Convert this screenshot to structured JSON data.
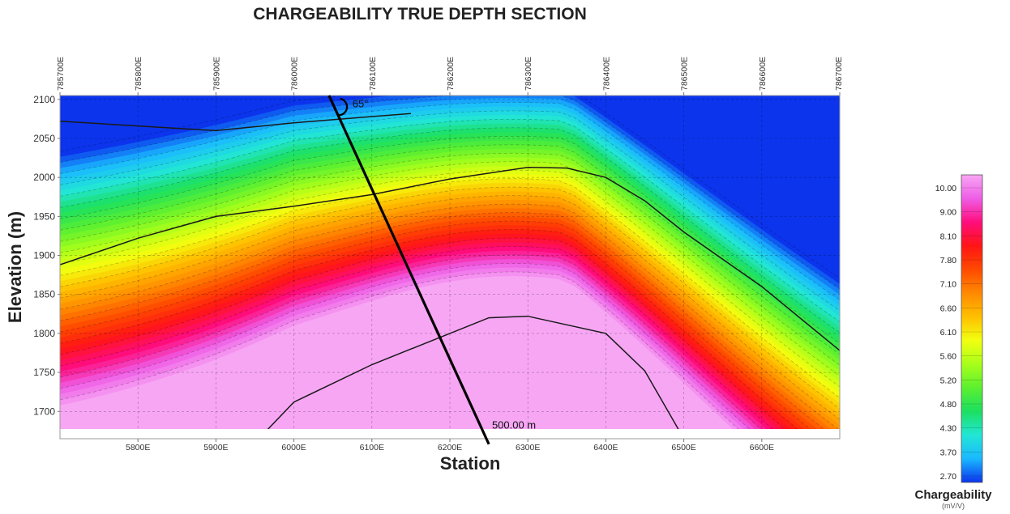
{
  "chart_data": {
    "type": "heatmap",
    "title": "CHARGEABILITY TRUE DEPTH SECTION",
    "xlabel": "Station",
    "ylabel": "Elevation (m)",
    "xlim": [
      5700,
      6700
    ],
    "ylim": [
      1665,
      2105
    ],
    "x_ticks": [
      "5800E",
      "5900E",
      "6000E",
      "6100E",
      "6200E",
      "6300E",
      "6400E",
      "6500E",
      "6600E"
    ],
    "x_tick_values": [
      5800,
      5900,
      6000,
      6100,
      6200,
      6300,
      6400,
      6500,
      6600
    ],
    "y_ticks": [
      1700,
      1750,
      1800,
      1850,
      1900,
      1950,
      2000,
      2050,
      2100
    ],
    "top_ticks": [
      "785700E",
      "785800E",
      "785900E",
      "786000E",
      "786100E",
      "786200E",
      "786300E",
      "786400E",
      "786500E",
      "786600E",
      "786700E"
    ],
    "top_tick_values": [
      5700,
      5800,
      5900,
      6000,
      6100,
      6200,
      6300,
      6400,
      6500,
      6600,
      6700
    ],
    "grid": true,
    "colorbar": {
      "title": "Chargeability",
      "unit": "(mV/V)",
      "labels": [
        "10.00",
        "9.00",
        "8.10",
        "7.80",
        "7.10",
        "6.60",
        "6.10",
        "5.60",
        "5.20",
        "4.80",
        "4.30",
        "3.70",
        "2.70"
      ],
      "colors": [
        "#ef5de6",
        "#ff0d7c",
        "#ff1515",
        "#ff4a00",
        "#ff8a00",
        "#ffc000",
        "#f2ff10",
        "#a8ff1a",
        "#5cf030",
        "#1ce060",
        "#22e6d6",
        "#1ab8ff",
        "#0b34ec"
      ],
      "top_color": "#f7a6f4",
      "placement": "right"
    },
    "contours": [
      {
        "level": 3,
        "points": [
          [
            5700,
            2072
          ],
          [
            5800,
            2066
          ],
          [
            5900,
            2060
          ],
          [
            6000,
            2070
          ],
          [
            6100,
            2078
          ],
          [
            6150,
            2082
          ]
        ]
      },
      {
        "level": 5,
        "points": [
          [
            5700,
            1888
          ],
          [
            5800,
            1922
          ],
          [
            5900,
            1950
          ],
          [
            6000,
            1963
          ],
          [
            6100,
            1978
          ],
          [
            6200,
            1998
          ],
          [
            6300,
            2013
          ],
          [
            6350,
            2012
          ],
          [
            6400,
            2000
          ],
          [
            6450,
            1970
          ],
          [
            6500,
            1930
          ],
          [
            6600,
            1860
          ],
          [
            6700,
            1778
          ]
        ]
      },
      {
        "level": 11,
        "points": [
          [
            5955,
            1665
          ],
          [
            6000,
            1712
          ],
          [
            6100,
            1760
          ],
          [
            6200,
            1800
          ],
          [
            6250,
            1820
          ],
          [
            6300,
            1822
          ],
          [
            6400,
            1800
          ],
          [
            6450,
            1752
          ],
          [
            6500,
            1665
          ]
        ]
      }
    ],
    "annotations": [
      {
        "text": "65°",
        "x": 6075,
        "y": 2090
      },
      {
        "text": "500.00 m",
        "x": 6254,
        "y": 1678
      }
    ],
    "drillhole": {
      "start": [
        6045,
        2105
      ],
      "end": [
        6250,
        1658
      ],
      "dip_label": "65°",
      "length_label": "500.00 m"
    }
  }
}
